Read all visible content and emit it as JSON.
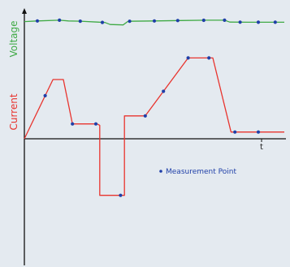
{
  "chart_data": {
    "type": "line",
    "title": "",
    "x_tick_label": "t",
    "grid": false,
    "legend": {
      "position": "bottom-right",
      "marker_label": "Measurement Point"
    },
    "x": [
      0,
      1
    ],
    "xlim": [
      0,
      1
    ],
    "ylim": [
      -1,
      1
    ],
    "colors": {
      "voltage": "#3faa45",
      "current": "#e8342e",
      "marker": "#1f3fa8",
      "axis": "#111111",
      "background": "#e4eaf0"
    },
    "series": [
      {
        "name": "Voltage",
        "role": "voltage",
        "points": [
          [
            0.0,
            0.87
          ],
          [
            0.05,
            0.875
          ],
          [
            0.135,
            0.88
          ],
          [
            0.17,
            0.875
          ],
          [
            0.215,
            0.873
          ],
          [
            0.28,
            0.866
          ],
          [
            0.31,
            0.863
          ],
          [
            0.33,
            0.848
          ],
          [
            0.38,
            0.845
          ],
          [
            0.395,
            0.867
          ],
          [
            0.4,
            0.872
          ],
          [
            0.5,
            0.875
          ],
          [
            0.6,
            0.878
          ],
          [
            0.7,
            0.88
          ],
          [
            0.77,
            0.88
          ],
          [
            0.79,
            0.866
          ],
          [
            0.86,
            0.865
          ],
          [
            1.0,
            0.865
          ]
        ],
        "markers_at": [
          0.05,
          0.135,
          0.215,
          0.3,
          0.405,
          0.5,
          0.59,
          0.69,
          0.77,
          0.83,
          0.9,
          0.965
        ]
      },
      {
        "name": "Current",
        "role": "current",
        "points": [
          [
            0.0,
            0.0
          ],
          [
            0.11,
            0.44
          ],
          [
            0.15,
            0.44
          ],
          [
            0.185,
            0.11
          ],
          [
            0.28,
            0.11
          ],
          [
            0.29,
            0.1
          ],
          [
            0.29,
            -0.42
          ],
          [
            0.385,
            -0.42
          ],
          [
            0.385,
            0.17
          ],
          [
            0.465,
            0.17
          ],
          [
            0.63,
            0.6
          ],
          [
            0.725,
            0.6
          ],
          [
            0.795,
            0.05
          ],
          [
            1.0,
            0.05
          ]
        ],
        "markers_at": [
          0.08,
          0.185,
          0.275,
          0.37,
          0.465,
          0.535,
          0.63,
          0.71,
          0.81,
          0.9
        ]
      }
    ]
  },
  "labels": {
    "voltage_axis": "Voltage",
    "current_axis": "Current"
  }
}
